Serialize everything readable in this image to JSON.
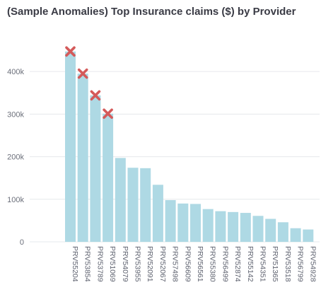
{
  "chart_data": {
    "type": "bar",
    "title": "(Sample Anomalies) Top Insurance claims ($) by Provider",
    "xlabel": "",
    "ylabel": "",
    "ylim": [
      0,
      460000
    ],
    "yticks": [
      0,
      100000,
      200000,
      300000,
      400000
    ],
    "ytick_labels": [
      "0",
      "100k",
      "200k",
      "300k",
      "400k"
    ],
    "grid": "horizontal",
    "categories": [
      "PRV55204",
      "PRV53854",
      "PRV53789",
      "PRV51069",
      "PRV54079",
      "PRV53955",
      "PRV52091",
      "PRV52067",
      "PRV57498",
      "PRV56609",
      "PRV56561",
      "PRV55380",
      "PRV56499",
      "PRV52874",
      "PRV55142",
      "PRV54351",
      "PRV51365",
      "PRV53518",
      "PRV56799",
      "PRV54928"
    ],
    "values": [
      447000,
      395000,
      344000,
      301000,
      197000,
      174000,
      173000,
      134000,
      98000,
      90000,
      89000,
      77000,
      72000,
      70000,
      68000,
      61000,
      54000,
      46000,
      32000,
      29000
    ],
    "anomalies": [
      0,
      1,
      2,
      3
    ],
    "bar_color": "#aed9e4",
    "anomaly_marker": "x-mark",
    "anomaly_color": "#d45a5a",
    "grid_color": "#e6e8ec"
  }
}
